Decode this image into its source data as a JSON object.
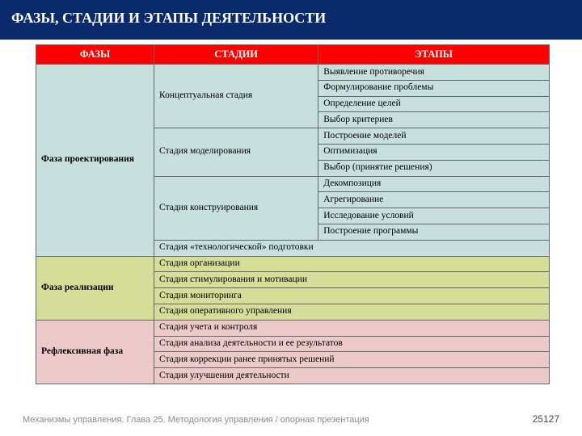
{
  "title": "ФАЗЫ, СТАДИИ И ЭТАПЫ ДЕЯТЕЛЬНОСТИ",
  "columns": [
    "ФАЗЫ",
    "СТАДИИ",
    "ЭТАПЫ"
  ],
  "column_widths": [
    "23%",
    "32%",
    "45%"
  ],
  "header_bg": "#ff0000",
  "colors": {
    "teal": "#c7e0de",
    "olive": "#d6dd99",
    "pink": "#ebcac9",
    "title_bg": "#0b2a6b",
    "border": "#666666",
    "footer_gray": "#8a8a8a"
  },
  "phases": [
    {
      "name": "Фаза проектирования",
      "bg": "#c7e0de",
      "stages": [
        {
          "name": "Концептуальная стадия",
          "bg": "#c7e0de",
          "steps": [
            "Выявление противоречия",
            "Формулирование проблемы",
            "Определение целей",
            "Выбор критериев"
          ]
        },
        {
          "name": "Стадия моделирования",
          "bg": "#c7e0de",
          "steps": [
            "Построение моделей",
            "Оптимизация",
            "Выбор (принятие решения)"
          ]
        },
        {
          "name": "Стадия конструирования",
          "bg": "#c7e0de",
          "steps": [
            "Декомпозиция",
            "Агрегирование",
            "Исследование условий",
            "Построение программы"
          ]
        },
        {
          "name": "Стадия «технологической» подготовки",
          "bg": "#c7e0de",
          "spanSteps": true
        }
      ]
    },
    {
      "name": "Фаза реализации",
      "bg": "#d6dd99",
      "stages": [
        {
          "name": "Стадия организации",
          "bg": "#d6dd99",
          "spanSteps": true
        },
        {
          "name": "Стадия стимулирования и мотивации",
          "bg": "#d6dd99",
          "spanSteps": true
        },
        {
          "name": "Стадия мониторинга",
          "bg": "#d6dd99",
          "spanSteps": true
        },
        {
          "name": "Стадия оперативного управления",
          "bg": "#d6dd99",
          "spanSteps": true
        }
      ]
    },
    {
      "name": "Рефлексивная фаза",
      "bg": "#ebcac9",
      "stages": [
        {
          "name": "Стадия учета и контроля",
          "bg": "#ebcac9",
          "spanSteps": true
        },
        {
          "name": "Стадия анализа деятельности и ее результатов",
          "bg": "#ebcac9",
          "spanSteps": true
        },
        {
          "name": "Стадия коррекции ранее принятых решений",
          "bg": "#ebcac9",
          "spanSteps": true
        },
        {
          "name": "Стадия улучшения деятельности",
          "bg": "#ebcac9",
          "spanSteps": true
        }
      ]
    }
  ],
  "footer_text": "Механизмы управления. Глава 25. Методология управления / опорная презентация",
  "page_number": "25127"
}
